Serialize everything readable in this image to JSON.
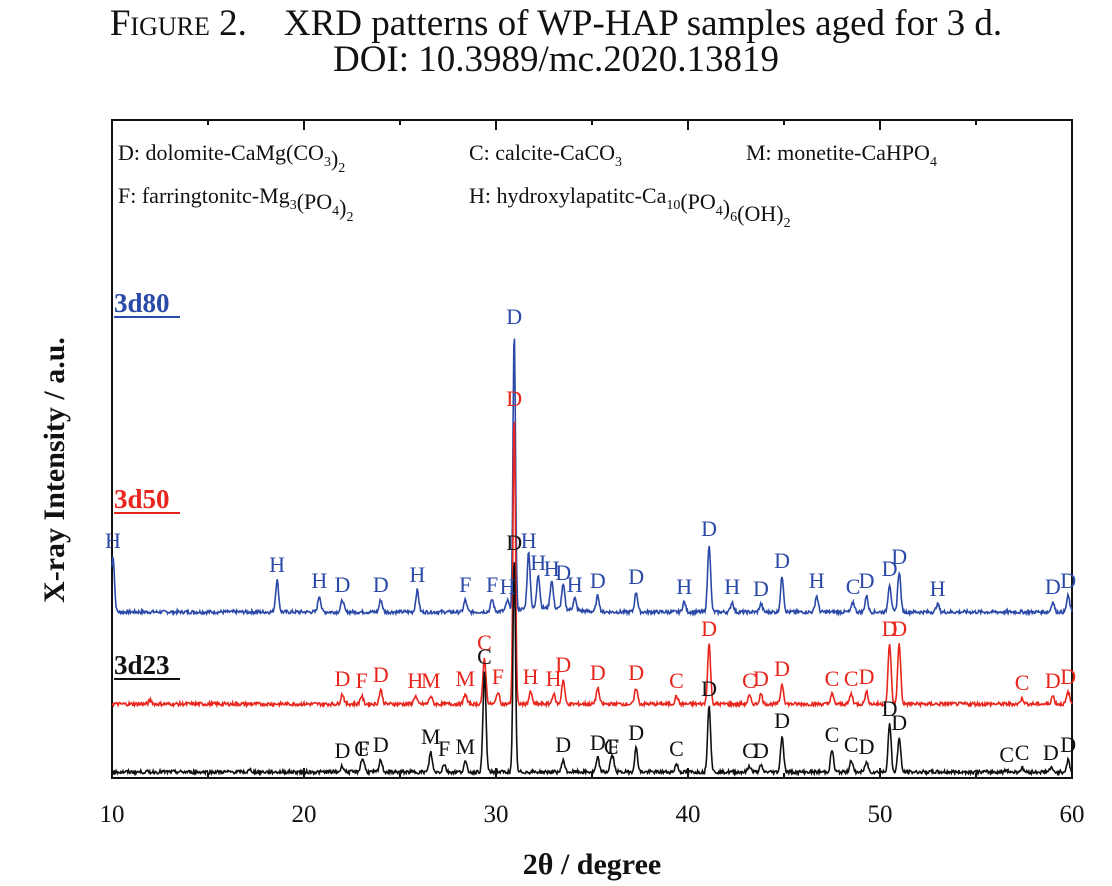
{
  "caption": {
    "figure_label": "Figure 2.",
    "title": "XRD patterns of WP-HAP samples aged for 3 d.",
    "doi": "DOI: 10.3989/mc.2020.13819"
  },
  "colors": {
    "3d80": "#2b4aa8",
    "3d50": "#e8261e",
    "3d23": "#111111",
    "axis": "#111111"
  },
  "chart_data": {
    "type": "line",
    "title": "",
    "xlabel": "2θ  / degree",
    "ylabel": "X-ray Intensity / a.u.",
    "xlim": [
      10,
      60
    ],
    "x_ticks": [
      "10",
      "20",
      "30",
      "40",
      "50",
      "60"
    ],
    "y_ticks_shown": false,
    "legend": {
      "placement": "top",
      "entries": [
        {
          "id": "D",
          "text": "D: dolomite-CaMg(CO",
          "sub1": "3",
          "tail1": ")",
          "sub2": "2",
          "tail2": ""
        },
        {
          "id": "C",
          "text": "C: calcite-CaCO",
          "sub1": "3",
          "tail1": "",
          "sub2": "",
          "tail2": ""
        },
        {
          "id": "M",
          "text": "M: monetite-CaHPO",
          "sub1": "4",
          "tail1": "",
          "sub2": "",
          "tail2": ""
        },
        {
          "id": "F",
          "text": "F: farringtonitc-Mg",
          "sub1": "3",
          "tail1": "(PO",
          "sub2": "4",
          "tail2": ")",
          "sub3": "2"
        },
        {
          "id": "H",
          "text": "H: hydroxylapatitc-Ca",
          "sub1": "10",
          "tail1": "(PO",
          "sub2": "4",
          "tail2": ")",
          "sub3": "6",
          "tail3": "(OH)",
          "sub4": "2"
        }
      ]
    },
    "series": [
      {
        "name": "3d80",
        "baseline": 0.8,
        "peaks": [
          {
            "x": 10.05,
            "h": 0.28,
            "label": "H"
          },
          {
            "x": 18.6,
            "h": 0.16,
            "label": "H"
          },
          {
            "x": 20.8,
            "h": 0.08,
            "label": "H"
          },
          {
            "x": 22.0,
            "h": 0.06,
            "label": "D"
          },
          {
            "x": 24.0,
            "h": 0.06,
            "label": "D"
          },
          {
            "x": 25.9,
            "h": 0.11,
            "label": "H"
          },
          {
            "x": 28.4,
            "h": 0.06,
            "label": "F"
          },
          {
            "x": 29.8,
            "h": 0.06,
            "label": "F"
          },
          {
            "x": 30.6,
            "h": 0.05,
            "label": "H"
          },
          {
            "x": 30.95,
            "h": 1.4,
            "label": "D"
          },
          {
            "x": 31.7,
            "h": 0.28,
            "label": "H"
          },
          {
            "x": 32.2,
            "h": 0.17,
            "label": "H"
          },
          {
            "x": 32.9,
            "h": 0.14,
            "label": "H"
          },
          {
            "x": 33.5,
            "h": 0.12,
            "label": "D"
          },
          {
            "x": 34.1,
            "h": 0.06,
            "label": "H"
          },
          {
            "x": 35.3,
            "h": 0.08,
            "label": "D"
          },
          {
            "x": 37.3,
            "h": 0.1,
            "label": "D"
          },
          {
            "x": 39.8,
            "h": 0.05,
            "label": "H"
          },
          {
            "x": 41.1,
            "h": 0.34,
            "label": "D"
          },
          {
            "x": 42.3,
            "h": 0.05,
            "label": "H"
          },
          {
            "x": 43.8,
            "h": 0.04,
            "label": "D"
          },
          {
            "x": 44.9,
            "h": 0.18,
            "label": "D"
          },
          {
            "x": 46.7,
            "h": 0.08,
            "label": "H"
          },
          {
            "x": 48.6,
            "h": 0.05,
            "label": "C"
          },
          {
            "x": 49.3,
            "h": 0.08,
            "label": "D"
          },
          {
            "x": 50.5,
            "h": 0.14,
            "label": "D"
          },
          {
            "x": 51.0,
            "h": 0.2,
            "label": "D"
          },
          {
            "x": 53.0,
            "h": 0.04,
            "label": "H"
          },
          {
            "x": 59.0,
            "h": 0.05,
            "label": "D"
          },
          {
            "x": 59.8,
            "h": 0.08,
            "label": "D"
          }
        ]
      },
      {
        "name": "3d50",
        "baseline": 0.34,
        "peaks": [
          {
            "x": 12.0,
            "h": 0.02
          },
          {
            "x": 22.0,
            "h": 0.05,
            "label": "D"
          },
          {
            "x": 23.0,
            "h": 0.04,
            "label": "F"
          },
          {
            "x": 24.0,
            "h": 0.07,
            "label": "D"
          },
          {
            "x": 25.8,
            "h": 0.04,
            "label": "H"
          },
          {
            "x": 26.6,
            "h": 0.04,
            "label": "M"
          },
          {
            "x": 28.4,
            "h": 0.05,
            "label": "M"
          },
          {
            "x": 29.4,
            "h": 0.23,
            "label": "C"
          },
          {
            "x": 30.1,
            "h": 0.06,
            "label": "F"
          },
          {
            "x": 30.95,
            "h": 1.45,
            "label": "D"
          },
          {
            "x": 31.8,
            "h": 0.06,
            "label": "H"
          },
          {
            "x": 33.0,
            "h": 0.05,
            "label": "H"
          },
          {
            "x": 33.5,
            "h": 0.12,
            "label": "D"
          },
          {
            "x": 35.3,
            "h": 0.08,
            "label": "D"
          },
          {
            "x": 37.3,
            "h": 0.08,
            "label": "D"
          },
          {
            "x": 39.4,
            "h": 0.04,
            "label": "C"
          },
          {
            "x": 41.1,
            "h": 0.3,
            "label": "D"
          },
          {
            "x": 43.2,
            "h": 0.04,
            "label": "C"
          },
          {
            "x": 43.8,
            "h": 0.05,
            "label": "D"
          },
          {
            "x": 44.9,
            "h": 0.1,
            "label": "D"
          },
          {
            "x": 47.5,
            "h": 0.05,
            "label": "C"
          },
          {
            "x": 48.5,
            "h": 0.05,
            "label": "C"
          },
          {
            "x": 49.3,
            "h": 0.06,
            "label": "D"
          },
          {
            "x": 50.5,
            "h": 0.3,
            "label": "D"
          },
          {
            "x": 51.0,
            "h": 0.3,
            "label": "D"
          },
          {
            "x": 57.4,
            "h": 0.03,
            "label": "C"
          },
          {
            "x": 59.0,
            "h": 0.04,
            "label": "D"
          },
          {
            "x": 59.8,
            "h": 0.06,
            "label": "D"
          }
        ]
      },
      {
        "name": "3d23",
        "baseline": 0.0,
        "peaks": [
          {
            "x": 17.2,
            "h": 0.01
          },
          {
            "x": 22.0,
            "h": 0.03,
            "label": "D"
          },
          {
            "x": 23.0,
            "h": 0.04,
            "label": "C"
          },
          {
            "x": 23.1,
            "h": 0.04,
            "label": "F"
          },
          {
            "x": 24.0,
            "h": 0.06,
            "label": "D"
          },
          {
            "x": 26.6,
            "h": 0.1,
            "label": "M"
          },
          {
            "x": 27.3,
            "h": 0.04,
            "label": "F"
          },
          {
            "x": 28.4,
            "h": 0.05,
            "label": "M"
          },
          {
            "x": 29.4,
            "h": 0.5,
            "label": "C"
          },
          {
            "x": 30.95,
            "h": 1.07,
            "label": "D"
          },
          {
            "x": 33.5,
            "h": 0.06,
            "label": "D"
          },
          {
            "x": 35.3,
            "h": 0.07,
            "label": "D"
          },
          {
            "x": 36.0,
            "h": 0.05,
            "label": "C"
          },
          {
            "x": 36.1,
            "h": 0.05,
            "label": "F"
          },
          {
            "x": 37.3,
            "h": 0.12,
            "label": "D"
          },
          {
            "x": 39.4,
            "h": 0.04,
            "label": "C"
          },
          {
            "x": 41.1,
            "h": 0.34,
            "label": "D"
          },
          {
            "x": 43.2,
            "h": 0.03,
            "label": "C"
          },
          {
            "x": 43.8,
            "h": 0.03,
            "label": "D"
          },
          {
            "x": 44.9,
            "h": 0.18,
            "label": "D"
          },
          {
            "x": 47.5,
            "h": 0.11,
            "label": "C"
          },
          {
            "x": 48.5,
            "h": 0.06,
            "label": "C"
          },
          {
            "x": 49.3,
            "h": 0.05,
            "label": "D"
          },
          {
            "x": 50.5,
            "h": 0.24,
            "label": "D"
          },
          {
            "x": 51.0,
            "h": 0.17,
            "label": "D"
          },
          {
            "x": 56.6,
            "h": 0.01,
            "label": "C"
          },
          {
            "x": 57.4,
            "h": 0.02,
            "label": "C"
          },
          {
            "x": 58.9,
            "h": 0.02,
            "label": "D"
          },
          {
            "x": 59.8,
            "h": 0.06,
            "label": "D"
          }
        ]
      }
    ]
  }
}
